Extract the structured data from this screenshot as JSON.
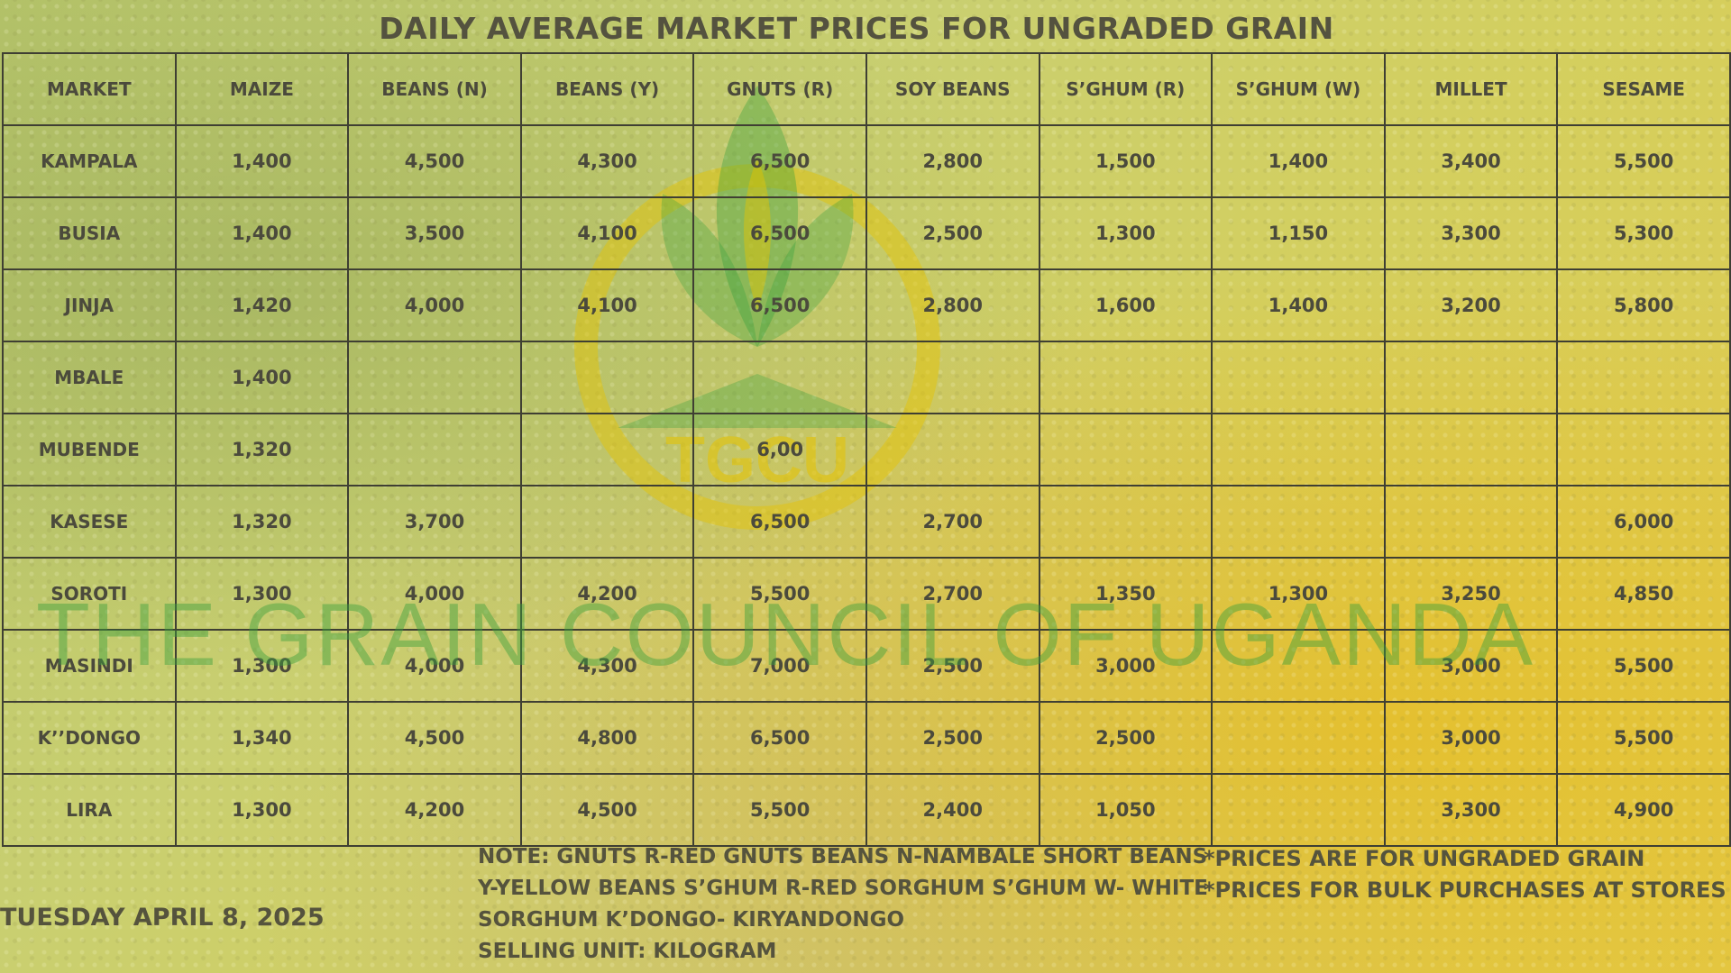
{
  "title": "DAILY AVERAGE MARKET PRICES FOR UNGRADED GRAIN",
  "watermark": "THE GRAIN COUNCIL OF UGANDA",
  "logo_text": "TGCU",
  "colors": {
    "text": "#4b4a3c",
    "grid": "#3f3f33",
    "watermark": "#3ca03c",
    "logo_yellow": "#e6c300",
    "logo_green": "#2e9e3a"
  },
  "table": {
    "headers": [
      "MARKET",
      "MAIZE",
      "BEANS (N)",
      "BEANS (Y)",
      "GNUTS (R)",
      "SOY BEANS",
      "S’GHUM (R)",
      "S’GHUM (W)",
      "MILLET",
      "SESAME"
    ],
    "rows": [
      [
        "KAMPALA",
        "1,400",
        "4,500",
        "4,300",
        "6,500",
        "2,800",
        "1,500",
        "1,400",
        "3,400",
        "5,500"
      ],
      [
        "BUSIA",
        "1,400",
        "3,500",
        "4,100",
        "6,500",
        "2,500",
        "1,300",
        "1,150",
        "3,300",
        "5,300"
      ],
      [
        "JINJA",
        "1,420",
        "4,000",
        "4,100",
        "6,500",
        "2,800",
        "1,600",
        "1,400",
        "3,200",
        "5,800"
      ],
      [
        "MBALE",
        "1,400",
        "",
        "",
        "",
        "",
        "",
        "",
        "",
        ""
      ],
      [
        "MUBENDE",
        "1,320",
        "",
        "",
        "6,00",
        "",
        "",
        "",
        "",
        ""
      ],
      [
        "KASESE",
        "1,320",
        "3,700",
        "",
        "6,500",
        "2,700",
        "",
        "",
        "",
        "6,000"
      ],
      [
        "SOROTI",
        "1,300",
        "4,000",
        "4,200",
        "5,500",
        "2,700",
        "1,350",
        "1,300",
        "3,250",
        "4,850"
      ],
      [
        "MASINDI",
        "1,300",
        "4,000",
        "4,300",
        "7,000",
        "2,500",
        "3,000",
        "",
        "3,000",
        "5,500"
      ],
      [
        "K’’DONGO",
        "1,340",
        "4,500",
        "4,800",
        "6,500",
        "2,500",
        "2,500",
        "",
        "3,000",
        "5,500"
      ],
      [
        "LIRA",
        "1,300",
        "4,200",
        "4,500",
        "5,500",
        "2,400",
        "1,050",
        "",
        "3,300",
        "4,900"
      ]
    ]
  },
  "notes": [
    "NOTE: GNUTS R-RED GNUTS  BEANS N-NAMBALE SHORT BEANS",
    "Y-YELLOW BEANS  S’GHUM R-RED SORGHUM  S’GHUM W- WHITE",
    "SORGHUM K’DONGO- KIRYANDONGO",
    "SELLING UNIT: KILOGRAM"
  ],
  "conditions": [
    "*PRICES ARE FOR UNGRADED GRAIN",
    "*PRICES FOR BULK PURCHASES AT STORES"
  ],
  "date": "TUESDAY APRIL 8, 2025"
}
